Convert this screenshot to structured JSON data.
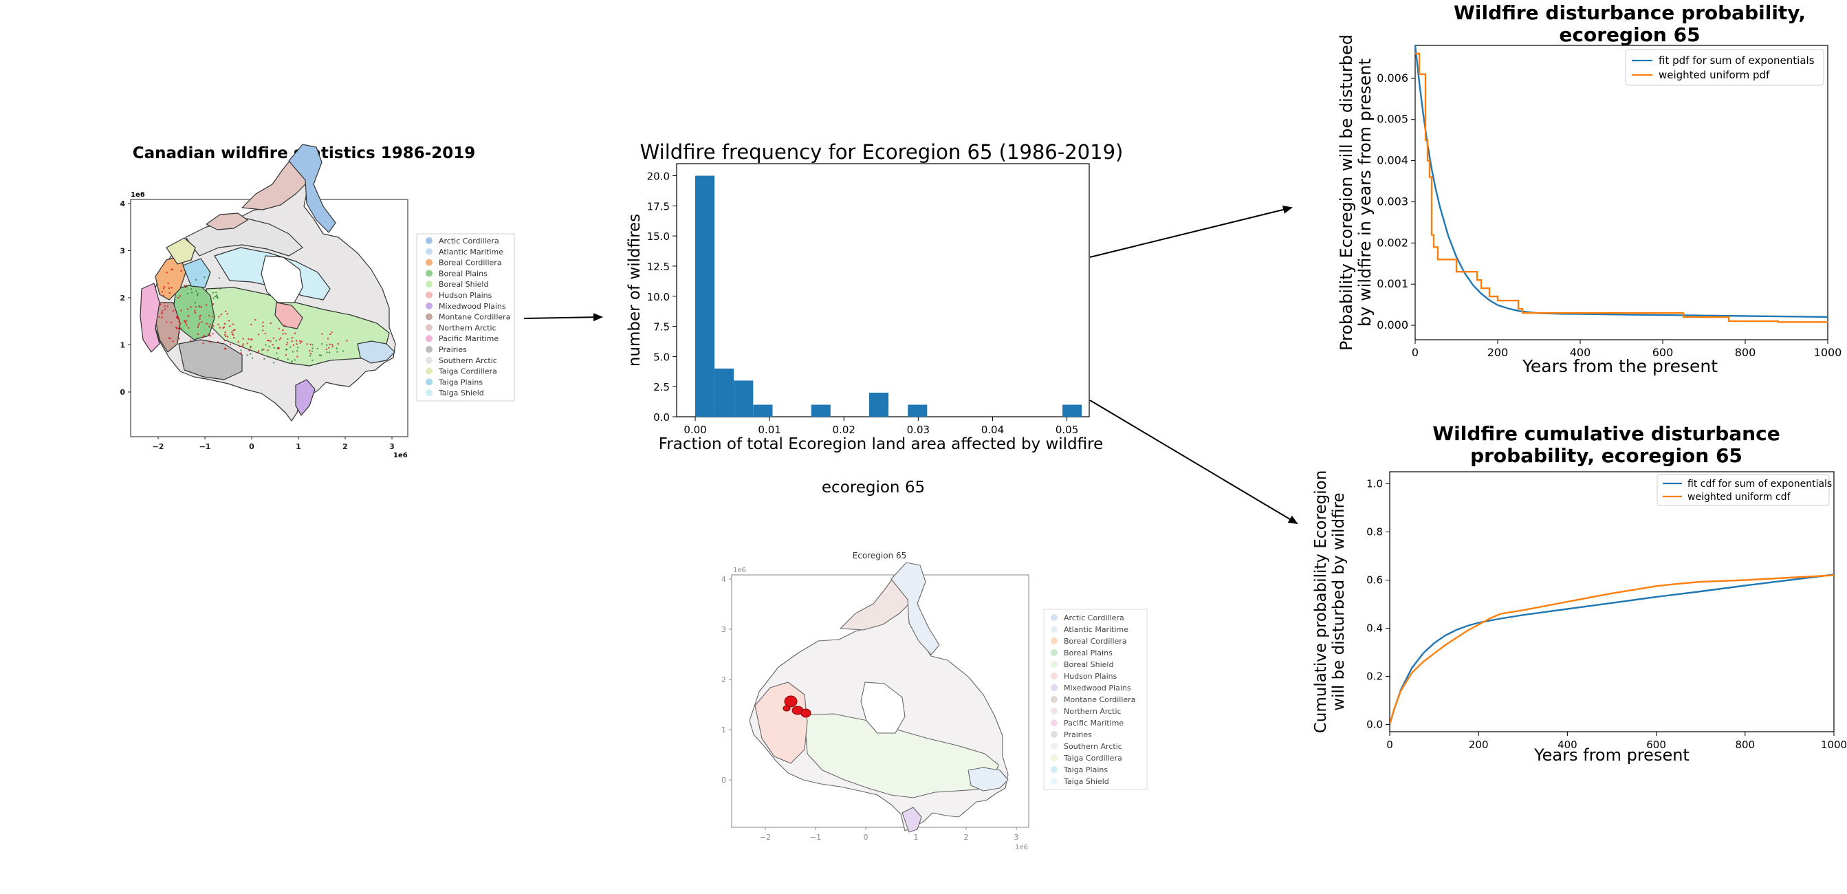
{
  "colors": {
    "bar_blue": "#1f77b4",
    "line_blue": "#1f77b4",
    "line_orange": "#ff7f0e",
    "fire_red": "#e0121a"
  },
  "map1": {
    "title": "Canadian wildfire statistics 1986-2019",
    "exponent_y": "1e6",
    "exponent_x": "1e6",
    "x_ticks": [
      "−2",
      "−1",
      "0",
      "1",
      "2",
      "3"
    ],
    "y_ticks": [
      "4",
      "3",
      "2",
      "1",
      "0"
    ],
    "legend": [
      {
        "label": "Arctic Cordillera",
        "color": "#9ec3e6"
      },
      {
        "label": "Atlantic Maritime",
        "color": "#c8dff2"
      },
      {
        "label": "Boreal Cordillera",
        "color": "#f6b07a"
      },
      {
        "label": "Boreal Plains",
        "color": "#8fd08f"
      },
      {
        "label": "Boreal Shield",
        "color": "#c7ecb7"
      },
      {
        "label": "Hudson Plains",
        "color": "#f3b8b8"
      },
      {
        "label": "Mixedwood Plains",
        "color": "#c9a9e6"
      },
      {
        "label": "Montane Cordillera",
        "color": "#c7a49b"
      },
      {
        "label": "Northern Arctic",
        "color": "#e3c6c1"
      },
      {
        "label": "Pacific Maritime",
        "color": "#f2b3d9"
      },
      {
        "label": "Prairies",
        "color": "#bdbdbd"
      },
      {
        "label": "Southern Arctic",
        "color": "#e4e4e4"
      },
      {
        "label": "Taiga Cordillera",
        "color": "#e6eab8"
      },
      {
        "label": "Taiga Plains",
        "color": "#a7d9ee"
      },
      {
        "label": "Taiga Shield",
        "color": "#cfeef5"
      }
    ]
  },
  "map2": {
    "title": "Ecoregion 65",
    "caption": "ecoregion 65",
    "exponent_y": "1e6",
    "exponent_x": "1e6",
    "x_ticks": [
      "−2",
      "−1",
      "0",
      "1",
      "2",
      "3"
    ],
    "y_ticks": [
      "4",
      "3",
      "2",
      "1",
      "0"
    ],
    "legend": [
      {
        "label": "Arctic Cordillera",
        "color": "#d4e4f3"
      },
      {
        "label": "Atlantic Maritime",
        "color": "#e6eff8"
      },
      {
        "label": "Boreal Cordillera",
        "color": "#fbd9bf"
      },
      {
        "label": "Boreal Plains",
        "color": "#cde9cd"
      },
      {
        "label": "Boreal Shield",
        "color": "#e6f5df"
      },
      {
        "label": "Hudson Plains",
        "color": "#f8dcdc"
      },
      {
        "label": "Mixedwood Plains",
        "color": "#e5d7f2"
      },
      {
        "label": "Montane Cordillera",
        "color": "#e4d4cf"
      },
      {
        "label": "Northern Arctic",
        "color": "#f1e5e3"
      },
      {
        "label": "Pacific Maritime",
        "color": "#f8d9ec"
      },
      {
        "label": "Prairies",
        "color": "#dedede"
      },
      {
        "label": "Southern Arctic",
        "color": "#f1f1f1"
      },
      {
        "label": "Taiga Cordillera",
        "color": "#f2f4dc"
      },
      {
        "label": "Taiga Plains",
        "color": "#d3ecf6"
      },
      {
        "label": "Taiga Shield",
        "color": "#e7f6fa"
      }
    ]
  },
  "chart_data": [
    {
      "type": "bar",
      "title": "Wildfire frequency for Ecoregion 65 (1986-2019)",
      "xlabel": "Fraction of total Ecoregion land area affected by wildfire",
      "ylabel": "number of wildfires",
      "bin_width": 0.0026,
      "bins": [
        {
          "x": 0.0,
          "count": 20
        },
        {
          "x": 0.0026,
          "count": 4
        },
        {
          "x": 0.0052,
          "count": 3
        },
        {
          "x": 0.0078,
          "count": 1
        },
        {
          "x": 0.0156,
          "count": 1
        },
        {
          "x": 0.0234,
          "count": 2
        },
        {
          "x": 0.0286,
          "count": 1
        },
        {
          "x": 0.0494,
          "count": 1
        }
      ],
      "xlim": [
        -0.0025,
        0.053
      ],
      "ylim": [
        0,
        21
      ],
      "x_ticks": [
        0.0,
        0.01,
        0.02,
        0.03,
        0.04,
        0.05
      ],
      "x_tick_labels": [
        "0.00",
        "0.01",
        "0.02",
        "0.03",
        "0.04",
        "0.05"
      ],
      "y_ticks": [
        0,
        2.5,
        5,
        7.5,
        10,
        12.5,
        15,
        17.5,
        20
      ],
      "y_tick_labels": [
        "0.0",
        "2.5",
        "5.0",
        "7.5",
        "10.0",
        "12.5",
        "15.0",
        "17.5",
        "20.0"
      ]
    },
    {
      "type": "line",
      "title": "Wildfire disturbance probability,\necoregion 65",
      "title_lines": [
        "Wildfire disturbance probability,",
        "ecoregion 65"
      ],
      "xlabel": "Years from the present",
      "ylabel_lines": [
        "Probability Ecoregion will be disturbed",
        "by wildfire in years from present"
      ],
      "xlim": [
        0,
        1000
      ],
      "ylim": [
        -0.00035,
        0.0068
      ],
      "x_ticks": [
        0,
        200,
        400,
        600,
        800,
        1000
      ],
      "x_tick_labels": [
        "0",
        "200",
        "400",
        "600",
        "800",
        "1000"
      ],
      "y_ticks": [
        0,
        0.001,
        0.002,
        0.003,
        0.004,
        0.005,
        0.006
      ],
      "y_tick_labels": [
        "0.000",
        "0.001",
        "0.002",
        "0.003",
        "0.004",
        "0.005",
        "0.006"
      ],
      "legend_position": "top-right",
      "series": [
        {
          "name": "fit pdf for sum of exponentials",
          "kind": "line",
          "x": [
            0,
            10,
            20,
            30,
            40,
            50,
            60,
            80,
            100,
            120,
            140,
            160,
            180,
            200,
            225,
            250,
            275,
            300,
            350,
            400,
            500,
            600,
            700,
            800,
            900,
            1000
          ],
          "y": [
            0.0068,
            0.0059,
            0.0051,
            0.0044,
            0.0038,
            0.0033,
            0.00288,
            0.00218,
            0.00166,
            0.00127,
            0.00098,
            0.00077,
            0.00061,
            0.00049,
            0.00041,
            0.00035,
            0.00032,
            0.000295,
            0.00028,
            0.000275,
            0.000262,
            0.00025,
            0.000238,
            0.000226,
            0.000214,
            0.000203
          ]
        },
        {
          "name": "weighted uniform pdf",
          "kind": "step",
          "x": [
            0,
            10,
            25,
            30,
            35,
            40,
            45,
            55,
            65,
            100,
            120,
            150,
            160,
            175,
            180,
            190,
            200,
            250,
            260,
            270,
            640,
            650,
            700,
            760,
            880,
            1000
          ],
          "y": [
            0.0066,
            0.0061,
            0.0045,
            0.004,
            0.0036,
            0.0022,
            0.0019,
            0.0016,
            0.0016,
            0.0013,
            0.0013,
            0.0011,
            0.0009,
            0.0009,
            0.0007,
            0.0007,
            0.0006,
            0.0004,
            0.0003,
            0.0003,
            0.0003,
            0.0002,
            0.0002,
            0.0001,
            8e-05,
            8e-05
          ]
        }
      ]
    },
    {
      "type": "line",
      "title": "Wildfire cumulative disturbance\nprobability, ecoregion 65",
      "title_lines": [
        "Wildfire cumulative disturbance",
        "probability, ecoregion 65"
      ],
      "xlabel": "Years from present",
      "ylabel_lines": [
        "Cumulative probability Ecoregion",
        "will be disturbed by wildfire"
      ],
      "xlim": [
        0,
        1000
      ],
      "ylim": [
        -0.03,
        1.05
      ],
      "x_ticks": [
        0,
        200,
        400,
        600,
        800,
        1000
      ],
      "x_tick_labels": [
        "0",
        "200",
        "400",
        "600",
        "800",
        "1000"
      ],
      "y_ticks": [
        0,
        0.2,
        0.4,
        0.6,
        0.8,
        1.0
      ],
      "y_tick_labels": [
        "0.0",
        "0.2",
        "0.4",
        "0.6",
        "0.8",
        "1.0"
      ],
      "legend_position": "top-right",
      "series": [
        {
          "name": "fit cdf for sum of exponentials",
          "x": [
            0,
            10,
            25,
            50,
            75,
            100,
            125,
            150,
            175,
            200,
            250,
            300,
            400,
            500,
            600,
            700,
            800,
            900,
            1000
          ],
          "y": [
            0,
            0.063,
            0.145,
            0.235,
            0.295,
            0.338,
            0.37,
            0.393,
            0.41,
            0.423,
            0.44,
            0.455,
            0.48,
            0.505,
            0.53,
            0.553,
            0.577,
            0.6,
            0.623
          ]
        },
        {
          "name": "weighted uniform cdf",
          "x": [
            0,
            10,
            25,
            50,
            75,
            100,
            125,
            150,
            175,
            200,
            225,
            250,
            300,
            400,
            500,
            600,
            650,
            700,
            800,
            900,
            1000
          ],
          "y": [
            0,
            0.065,
            0.14,
            0.215,
            0.26,
            0.295,
            0.33,
            0.36,
            0.39,
            0.415,
            0.44,
            0.46,
            0.475,
            0.51,
            0.545,
            0.575,
            0.585,
            0.593,
            0.6,
            0.61,
            0.62
          ]
        }
      ]
    }
  ]
}
